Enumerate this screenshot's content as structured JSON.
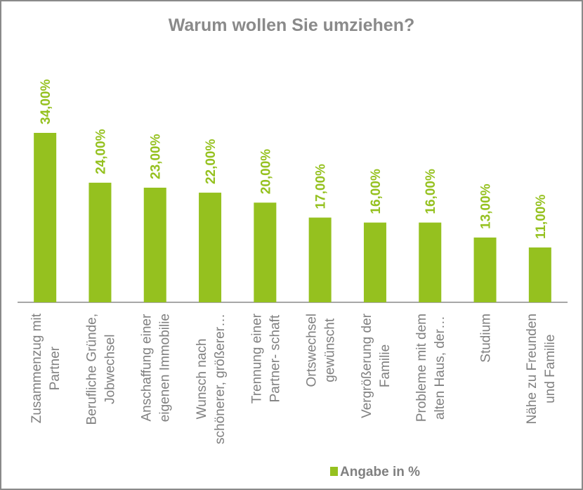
{
  "chart_data": {
    "type": "bar",
    "title": "Warum wollen Sie umziehen?",
    "categories": [
      [
        "Zusammenzug mit",
        "Partner"
      ],
      [
        "Berufliche Gründe,",
        "Jobwechsel"
      ],
      [
        "Anschaffung einer",
        "eigenen Immobilie"
      ],
      [
        "Wunsch nach",
        "schönerer, größerer…"
      ],
      [
        "Trennung einer",
        "Partner- schaft"
      ],
      [
        "Ortswechsel",
        "gewünscht"
      ],
      [
        "Vergrößerung der",
        "Familie"
      ],
      [
        "Probleme mit dem",
        "alten Haus, der…"
      ],
      [
        "Studium"
      ],
      [
        "Nähe zu Freunden",
        "und Familie"
      ]
    ],
    "series": [
      {
        "name": "Angabe in %",
        "values": [
          34,
          24,
          23,
          22,
          20,
          17,
          16,
          16,
          13,
          11
        ],
        "labels": [
          "34,00%",
          "24,00%",
          "23,00%",
          "22,00%",
          "20,00%",
          "17,00%",
          "16,00%",
          "16,00%",
          "13,00%",
          "11,00%"
        ]
      }
    ],
    "ylim": [
      0,
      34
    ],
    "grid": false,
    "legend": "bottom",
    "colors": {
      "bar": "#95c11f",
      "text": "#808080",
      "axis": "#8a8a8a"
    }
  }
}
